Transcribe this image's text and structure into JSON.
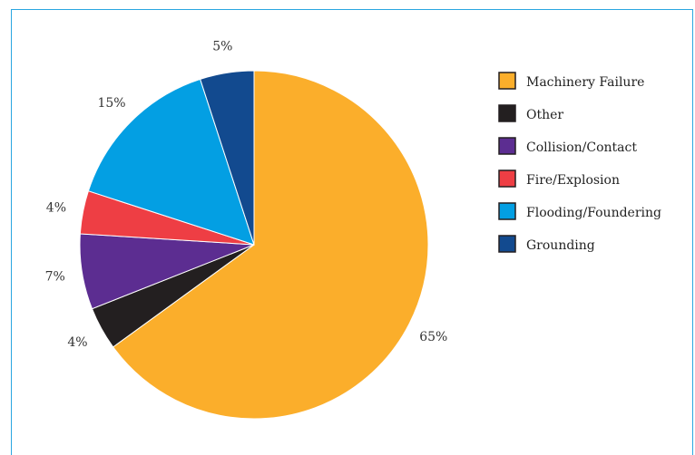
{
  "chart_data": {
    "type": "pie",
    "title": "",
    "slices": [
      {
        "label": "Machinery Failure",
        "value": 65,
        "display": "65%",
        "color": "#FBAE2B"
      },
      {
        "label": "Other",
        "value": 4,
        "display": "4%",
        "color": "#231F20"
      },
      {
        "label": "Collision/Contact",
        "value": 7,
        "display": "7%",
        "color": "#5C2D91"
      },
      {
        "label": "Fire/Explosion",
        "value": 4,
        "display": "4%",
        "color": "#EE3E44"
      },
      {
        "label": "Flooding/Foundering",
        "value": 15,
        "display": "15%",
        "color": "#039FE3"
      },
      {
        "label": "Grounding",
        "value": 5,
        "display": "5%",
        "color": "#124A8F"
      }
    ],
    "start_angle_deg": 0,
    "direction": "clockwise",
    "legend_placement": "right"
  }
}
